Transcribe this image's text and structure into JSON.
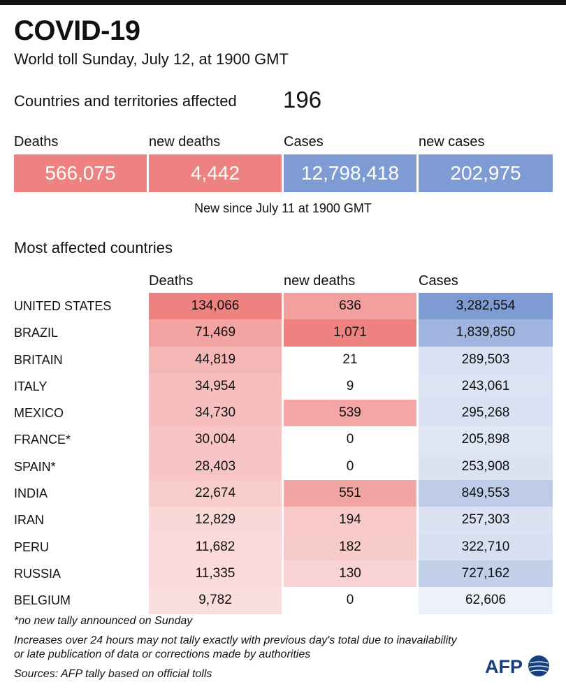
{
  "title": "COVID-19",
  "subtitle": "World toll Sunday, July 12, at 1900 GMT",
  "affected": {
    "label": "Countries and territories affected",
    "value": "196"
  },
  "summary": [
    {
      "label": "Deaths",
      "value": "566,075",
      "color": "#ee8280"
    },
    {
      "label": "new deaths",
      "value": "4,442",
      "color": "#ee8280"
    },
    {
      "label": "Cases",
      "value": "12,798,418",
      "color": "#7f9bd3"
    },
    {
      "label": "new cases",
      "value": "202,975",
      "color": "#7f9bd3"
    }
  ],
  "new_since": "New since  July 11 at 1900 GMT",
  "chart_data": {
    "type": "table",
    "title": "Most affected countries",
    "columns": [
      "Deaths",
      "new deaths",
      "Cases"
    ],
    "rows": [
      {
        "country": "UNITED STATES",
        "deaths": 134066,
        "new_deaths": 636,
        "cases": 3282554
      },
      {
        "country": "BRAZIL",
        "deaths": 71469,
        "new_deaths": 1071,
        "cases": 1839850
      },
      {
        "country": "BRITAIN",
        "deaths": 44819,
        "new_deaths": 21,
        "cases": 289503
      },
      {
        "country": "ITALY",
        "deaths": 34954,
        "new_deaths": 9,
        "cases": 243061
      },
      {
        "country": "MEXICO",
        "deaths": 34730,
        "new_deaths": 539,
        "cases": 295268
      },
      {
        "country": "FRANCE*",
        "deaths": 30004,
        "new_deaths": 0,
        "cases": 205898
      },
      {
        "country": "SPAIN*",
        "deaths": 28403,
        "new_deaths": 0,
        "cases": 253908
      },
      {
        "country": "INDIA",
        "deaths": 22674,
        "new_deaths": 551,
        "cases": 849553
      },
      {
        "country": "IRAN",
        "deaths": 12829,
        "new_deaths": 194,
        "cases": 257303
      },
      {
        "country": "PERU",
        "deaths": 11682,
        "new_deaths": 182,
        "cases": 322710
      },
      {
        "country": "RUSSIA",
        "deaths": 11335,
        "new_deaths": 130,
        "cases": 727162
      },
      {
        "country": "BELGIUM",
        "deaths": 9782,
        "new_deaths": 0,
        "cases": 62606
      }
    ],
    "colors": {
      "deaths": "#ee8280",
      "cases": "#7f9bd3"
    }
  },
  "footnote": "*no new tally announced on Sunday",
  "note_line1": "Increases over 24 hours may not tally exactly with previous day's total due to inavailability",
  "note_line2": "or late publication of data or corrections made by authorities",
  "sources": "Sources: AFP tally based on official tolls",
  "logo_text": "AFP"
}
